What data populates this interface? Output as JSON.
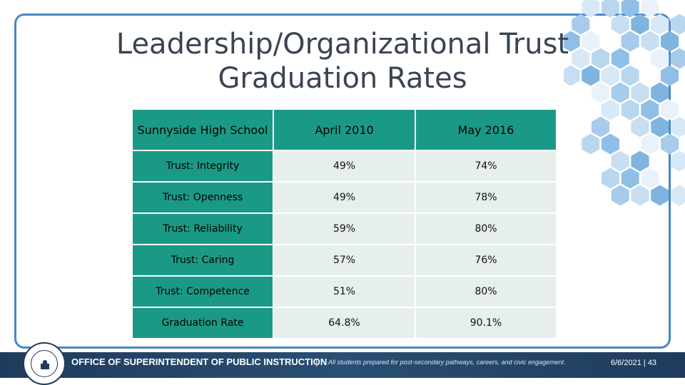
{
  "slide": {
    "title_line1": "Leadership/Organizational Trust",
    "title_line2": "Graduation Rates"
  },
  "table": {
    "headers": [
      "Sunnyside High School",
      "April 2010",
      "May 2016"
    ],
    "rows": [
      {
        "label": "Trust: Integrity",
        "apr2010": "49%",
        "may2016": "74%"
      },
      {
        "label": "Trust: Openness",
        "apr2010": "49%",
        "may2016": "78%"
      },
      {
        "label": "Trust: Reliability",
        "apr2010": "59%",
        "may2016": "80%"
      },
      {
        "label": "Trust: Caring",
        "apr2010": "57%",
        "may2016": "76%"
      },
      {
        "label": "Trust: Competence",
        "apr2010": "51%",
        "may2016": "80%"
      },
      {
        "label": "Graduation Rate",
        "apr2010": "64.8%",
        "may2016": "90.1%"
      }
    ]
  },
  "footer": {
    "organization": "OFFICE OF SUPERINTENDENT OF PUBLIC INSTRUCTION",
    "separator": "|",
    "tagline": "All students prepared for post-secondary pathways, careers, and civic engagement.",
    "date": "6/6/2021",
    "page_number": "43",
    "page_separator": "|"
  },
  "colors": {
    "frame": "#4a86c5",
    "header_teal": "#1a9a86",
    "cell_bg": "#e6efec",
    "footer_navy": "#1f3c5c"
  }
}
